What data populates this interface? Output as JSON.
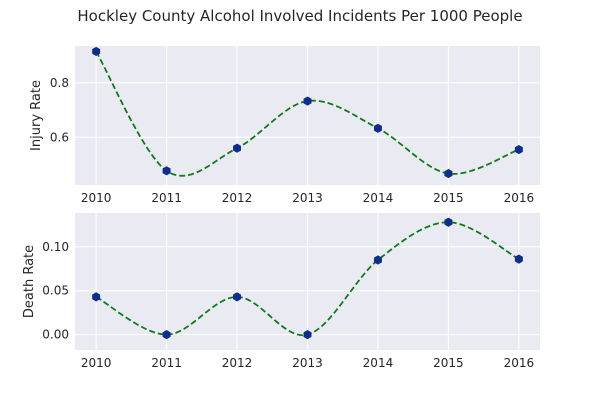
{
  "figure": {
    "title": "Hockley County Alcohol Involved Incidents Per 1000 People"
  },
  "chart_data": [
    {
      "type": "line",
      "ylabel": "Injury Rate",
      "xlabel": "",
      "x": [
        2010,
        2011,
        2012,
        2013,
        2014,
        2015,
        2016
      ],
      "series": [
        {
          "values": [
            0.915,
            0.477,
            0.56,
            0.733,
            0.633,
            0.467,
            0.555
          ]
        }
      ],
      "xlim": [
        2009.7,
        2016.3
      ],
      "ylim": [
        0.425,
        0.935
      ],
      "xticks": [
        "2010",
        "2011",
        "2012",
        "2013",
        "2014",
        "2015",
        "2016"
      ],
      "yticks": [
        {
          "value": 0.6,
          "label": "0.6"
        },
        {
          "value": 0.8,
          "label": "0.8"
        }
      ],
      "grid": true,
      "style": {
        "line": "dashed smooth",
        "line_color": "#117a1c",
        "marker": "hexagon",
        "marker_color": "#0d2e8a",
        "bg": "#eaeaf2"
      }
    },
    {
      "type": "line",
      "ylabel": "Death Rate",
      "xlabel": "",
      "x": [
        2010,
        2011,
        2012,
        2013,
        2014,
        2015,
        2016
      ],
      "series": [
        {
          "values": [
            0.043,
            0.0,
            0.043,
            0.0,
            0.085,
            0.128,
            0.086
          ]
        }
      ],
      "xlim": [
        2009.7,
        2016.3
      ],
      "ylim": [
        -0.0175,
        0.1385
      ],
      "xticks": [
        "2010",
        "2011",
        "2012",
        "2013",
        "2014",
        "2015",
        "2016"
      ],
      "yticks": [
        {
          "value": 0.0,
          "label": "0.00"
        },
        {
          "value": 0.05,
          "label": "0.05"
        },
        {
          "value": 0.1,
          "label": "0.10"
        }
      ],
      "grid": true,
      "style": {
        "line": "dashed smooth",
        "line_color": "#117a1c",
        "marker": "hexagon",
        "marker_color": "#0d2e8a",
        "bg": "#eaeaf2"
      }
    }
  ]
}
